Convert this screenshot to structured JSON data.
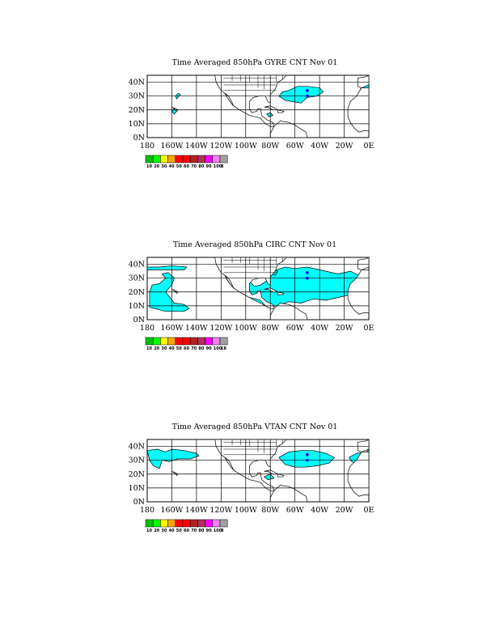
{
  "panels": [
    {
      "title": "Time Averaged 850hPa GYRE CNT Nov 01",
      "colorbar_labels": [
        "10",
        "20",
        "30",
        "40",
        "50",
        "60",
        "70",
        "80",
        "90",
        "100",
        "8"
      ]
    },
    {
      "title": "Time Averaged 850hPa CIRC CNT Nov 01",
      "colorbar_labels": [
        "10",
        "20",
        "30",
        "40",
        "50",
        "60",
        "70",
        "80",
        "90",
        "100",
        "18"
      ]
    },
    {
      "title": "Time Averaged 850hPa VTAN CNT Nov 01",
      "colorbar_labels": [
        "10",
        "20",
        "30",
        "40",
        "50",
        "60",
        "70",
        "80",
        "90",
        "100",
        "8"
      ]
    }
  ],
  "axes": {
    "lat_labels": [
      "40N",
      "30N",
      "20N",
      "10N",
      "0N"
    ],
    "lon_labels": [
      "180",
      "160W",
      "140W",
      "120W",
      "100W",
      "80W",
      "60W",
      "40W",
      "20W",
      "0E"
    ]
  },
  "colors": {
    "shading": "#00ffff",
    "marker": "#0000ff",
    "colorbar": [
      "#00c000",
      "#00ff00",
      "#ffff00",
      "#ffa500",
      "#ff0000",
      "#ff0000",
      "#b22222",
      "#b03060",
      "#ff00ff",
      "#ee82ee",
      "#a0a0a0"
    ]
  }
}
